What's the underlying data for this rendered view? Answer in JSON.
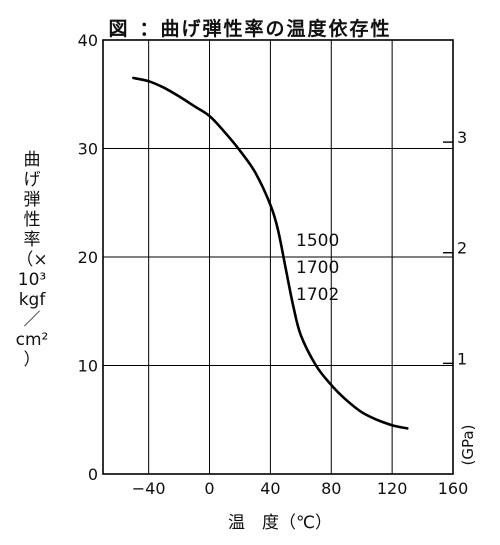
{
  "title": {
    "figure_label": "図",
    "text": "：曲げ弾性率の温度依存性"
  },
  "y_axis_label_lines": [
    "曲",
    "げ",
    "弾",
    "性",
    "率",
    "（×",
    "10³",
    "kgf",
    "／",
    "cm²",
    "）"
  ],
  "chart_data": {
    "type": "line",
    "title": "曲げ弾性率の温度依存性",
    "xlabel": "温　度（℃）",
    "ylabel": "曲げ弾性率（×10³ kgf／cm²）",
    "y2label": "(GPa)",
    "xlim": [
      -70,
      160
    ],
    "ylim": [
      0,
      40
    ],
    "x_ticks": [
      -40,
      0,
      40,
      80,
      120,
      160
    ],
    "x_tick_labels": [
      "−40",
      "0",
      "40",
      "80",
      "120",
      "160"
    ],
    "y_ticks": [
      0,
      10,
      20,
      30,
      40
    ],
    "y_tick_labels": [
      "0",
      "10",
      "20",
      "30",
      "40"
    ],
    "y2_ticks": [
      1,
      2,
      3
    ],
    "y2_tick_labels": [
      "1",
      "2",
      "3"
    ],
    "grid": true,
    "series": [
      {
        "name": "",
        "color": "#000000",
        "x": [
          -50,
          -40,
          -30,
          -20,
          -10,
          0,
          10,
          20,
          30,
          40,
          45,
          50,
          55,
          60,
          70,
          80,
          90,
          100,
          110,
          120,
          130
        ],
        "y": [
          36.5,
          36.2,
          35.6,
          34.8,
          33.9,
          33.0,
          31.5,
          29.8,
          27.8,
          24.8,
          22.5,
          19.0,
          15.5,
          12.8,
          10.0,
          8.2,
          6.8,
          5.7,
          5.0,
          4.5,
          4.2
        ]
      }
    ],
    "annotations": [
      "1500",
      "1700",
      "1702"
    ]
  }
}
